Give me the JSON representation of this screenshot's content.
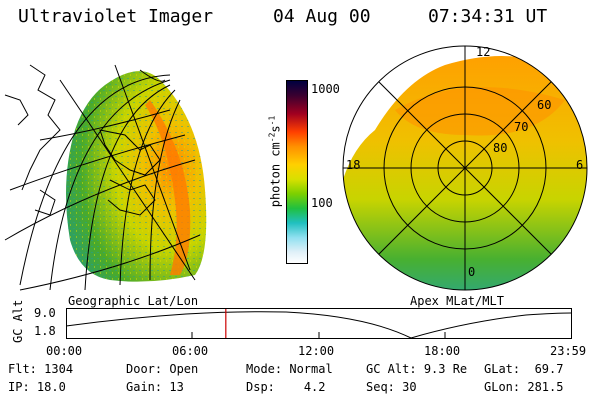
{
  "header": {
    "title": "Ultraviolet Imager",
    "date": "04 Aug 00",
    "time": "07:34:31 UT"
  },
  "colorbar": {
    "unit_label": "photon cm",
    "unit_exp1": "-2",
    "unit_s": "s",
    "unit_exp2": "-1",
    "tick_1000": "1000",
    "tick_100": "100"
  },
  "left_panel": {
    "caption": "Geographic Lat/Lon"
  },
  "right_panel": {
    "caption": "Apex MLat/MLT",
    "mlt_labels": {
      "top": "12",
      "left": "18",
      "right": "6",
      "bottom": "0"
    },
    "lat_labels": [
      "60",
      "70",
      "80"
    ]
  },
  "timeline": {
    "ylabel": "GC Alt",
    "y_top": "9.0",
    "y_bottom": "1.8",
    "ticks": [
      "00:00",
      "06:00",
      "12:00",
      "18:00",
      "23:59"
    ],
    "marker_time_hours": 7.575
  },
  "info": {
    "flt_label": "Flt:",
    "flt_value": "1304",
    "ip_label": "IP:",
    "ip_value": "18.0",
    "door_label": "Door:",
    "door_value": "Open",
    "gain_label": "Gain:",
    "gain_value": "13",
    "mode_label": "Mode:",
    "mode_value": "Normal",
    "dsp_label": "Dsp:",
    "dsp_value": "4.2",
    "gcalt_label": "GC Alt:",
    "gcalt_value": "9.3 Re",
    "seq_label": "Seq:",
    "seq_value": "30",
    "glat_label": "GLat:",
    "glat_value": "69.7",
    "glon_label": "GLon:",
    "glon_value": "281.5"
  },
  "colors": {
    "marker": "#cc0000",
    "uv_low": "#2f9a2f",
    "uv_mid": "#e6c800",
    "uv_high": "#ff8a00"
  }
}
